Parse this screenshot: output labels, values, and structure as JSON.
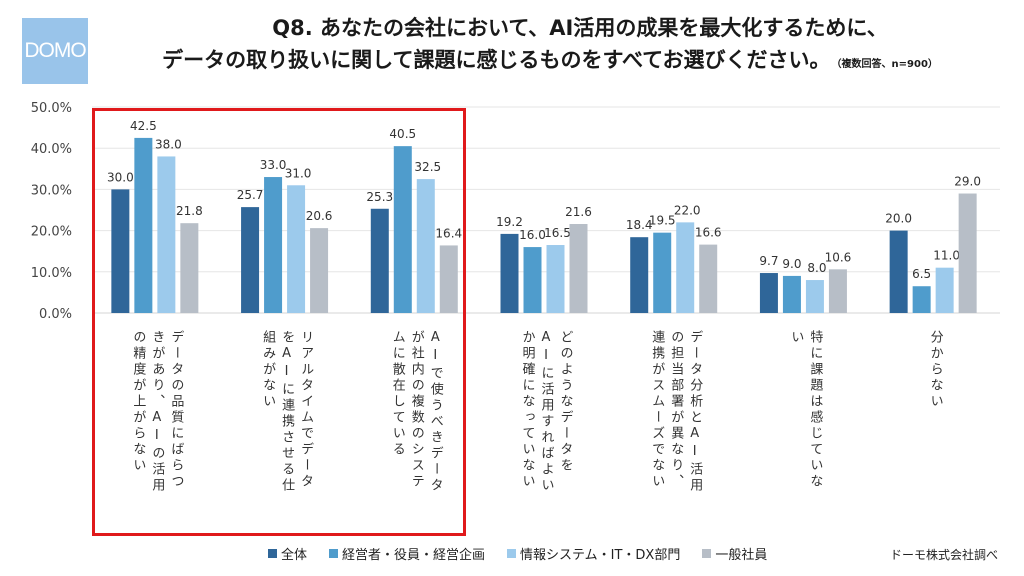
{
  "logo": {
    "text": "DOMO"
  },
  "header": {
    "title_line1": "Q8. あなたの会社において、AI活用の成果を最大化するために、",
    "title_line2": "データの取り扱いに関して課題に感じるものをすべてお選びください。",
    "note": "（複数回答、n=900）"
  },
  "colors": {
    "series": [
      "#2f6699",
      "#4f9ccc",
      "#9ccaec",
      "#b7bec7"
    ],
    "highlight": "#e0191b"
  },
  "source": "ドーモ株式会社調べ",
  "chart_data": {
    "type": "bar",
    "title": "Q8. あなたの会社において、AI活用の成果を最大化するために、データの取り扱いに関して課題に感じるものをすべてお選びください。",
    "ylabel": "",
    "xlabel": "",
    "ylim": [
      0,
      50
    ],
    "yticks": [
      "0.0%",
      "10.0%",
      "20.0%",
      "30.0%",
      "40.0%",
      "50.0%"
    ],
    "grid": true,
    "legend_position": "bottom",
    "categories": [
      "データの品質にばらつきがあり、AIの活用の精度が上がらない",
      "リアルタイムでデータをAIに連携させる仕組みがない",
      "AIで使うべきデータが社内の複数のシステムに散在している",
      "どのようなデータをAIに活用すればよいか明確になっていない",
      "データ分析とAI活用の担当部署が異なり、連携がスムーズでない",
      "特に課題は感じていない",
      "分からない"
    ],
    "category_label_columns": [
      [
        "データの品質にばらつ",
        "きがあり、AIの活用",
        "の精度が上がらない"
      ],
      [
        "リアルタイムでデータ",
        "をAIに連携させる仕",
        "組みがない"
      ],
      [
        "AIで使うべきデータ",
        "が社内の複数のシステ",
        "ムに散在している"
      ],
      [
        "どのようなデータを",
        "AIに活用すればよい",
        "か明確になっていない"
      ],
      [
        "データ分析とAI活用",
        "の担当部署が異なり、",
        "連携がスムーズでない"
      ],
      [
        "特に課題は感じていな",
        "い"
      ],
      [
        "分からない"
      ]
    ],
    "series": [
      {
        "name": "全体",
        "values": [
          30.0,
          25.7,
          25.3,
          19.2,
          18.4,
          9.7,
          20.0
        ]
      },
      {
        "name": "経営者・役員・経営企画",
        "values": [
          42.5,
          33.0,
          40.5,
          16.0,
          19.5,
          9.0,
          6.5
        ]
      },
      {
        "name": "情報システム・IT・DX部門",
        "values": [
          38.0,
          31.0,
          32.5,
          16.5,
          22.0,
          8.0,
          11.0
        ]
      },
      {
        "name": "一般社員",
        "values": [
          21.8,
          20.6,
          16.4,
          21.6,
          16.6,
          10.6,
          29.0
        ]
      }
    ],
    "highlighted_categories": [
      0,
      1,
      2
    ]
  }
}
